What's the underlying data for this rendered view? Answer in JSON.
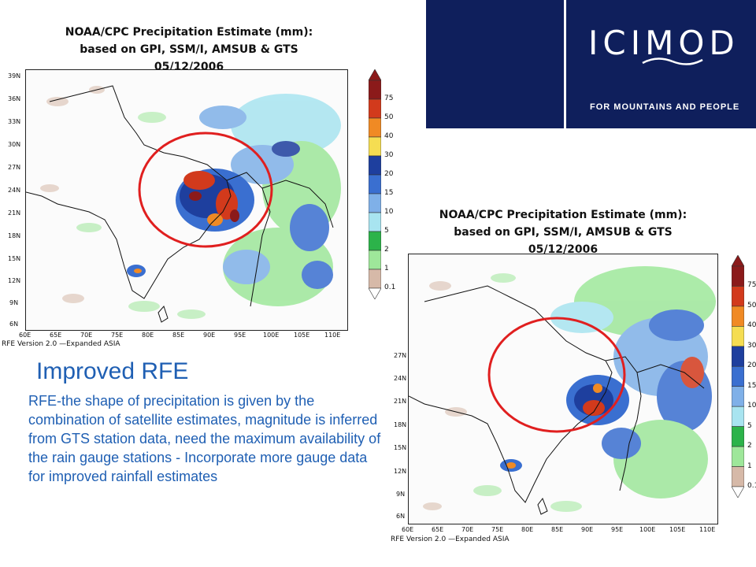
{
  "map_top": {
    "title_lines": [
      "NOAA/CPC Precipitation Estimate (mm):",
      "based on GPI, SSM/I, AMSUB & GTS",
      "05/12/2006"
    ],
    "lat_labels": [
      "39N",
      "36N",
      "33N",
      "30N",
      "27N",
      "24N",
      "21N",
      "18N",
      "15N",
      "12N",
      "9N",
      "6N"
    ],
    "lon_labels": [
      "60E",
      "65E",
      "70E",
      "75E",
      "80E",
      "85E",
      "90E",
      "95E",
      "100E",
      "105E",
      "110E"
    ],
    "caption": "RFE Version 2.0 —Expanded ASIA"
  },
  "map_bottom": {
    "title_lines": [
      "NOAA/CPC Precipitation Estimate (mm):",
      "based on GPI, SSM/I, AMSUB & GTS",
      "05/12/2006"
    ],
    "lat_labels": [
      "27N",
      "24N",
      "21N",
      "18N",
      "15N",
      "12N",
      "9N",
      "6N"
    ],
    "lon_labels": [
      "60E",
      "65E",
      "70E",
      "75E",
      "80E",
      "85E",
      "90E",
      "95E",
      "100E",
      "105E",
      "110E"
    ],
    "caption": "RFE Version 2.0 —Expanded ASIA"
  },
  "color_scale": {
    "labels": [
      "75",
      "50",
      "40",
      "30",
      "20",
      "15",
      "10",
      "5",
      "2",
      "1",
      "0.1"
    ],
    "colors": [
      "#8b1a1a",
      "#d23a1c",
      "#f08a24",
      "#f5dd52",
      "#1e3f9e",
      "#3a6fd0",
      "#7fb0e8",
      "#a8e4f0",
      "#2cb34a",
      "#9ee79a",
      "#d6b9a8"
    ]
  },
  "logo": {
    "wordmark": "ICIMOD",
    "tagline": "FOR MOUNTAINS AND PEOPLE",
    "navy": "#0f1f5c"
  },
  "heading": "Improved RFE",
  "body": "RFE-the shape of precipitation is given by the combination of satellite estimates, magnitude is inferred from GTS station data, need the maximum availability of the rain gauge stations - Incorporate more gauge data for improved rainfall estimates"
}
